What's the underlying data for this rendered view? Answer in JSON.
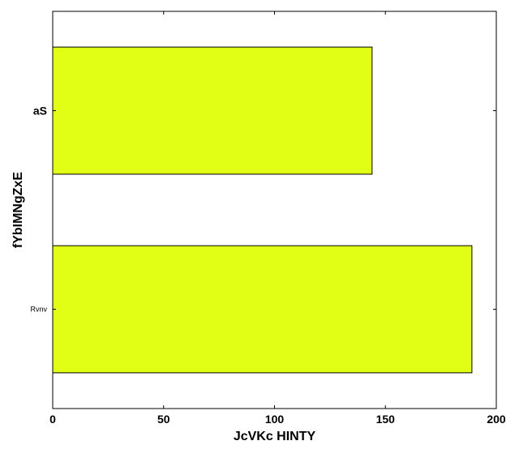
{
  "chart_data": {
    "type": "bar",
    "orientation": "horizontal",
    "categories": [
      "aS",
      "Rvnv"
    ],
    "values": [
      144,
      189
    ],
    "xlabel": "JcVKc HINTY",
    "ylabel": "fYbIMNgZxE",
    "xlim": [
      0,
      200
    ],
    "xticks": [
      "0",
      "50",
      "100",
      "150",
      "200"
    ],
    "grid": false,
    "legend": "none",
    "bar_color": "#e1ff14",
    "edge_color": "#000000"
  }
}
